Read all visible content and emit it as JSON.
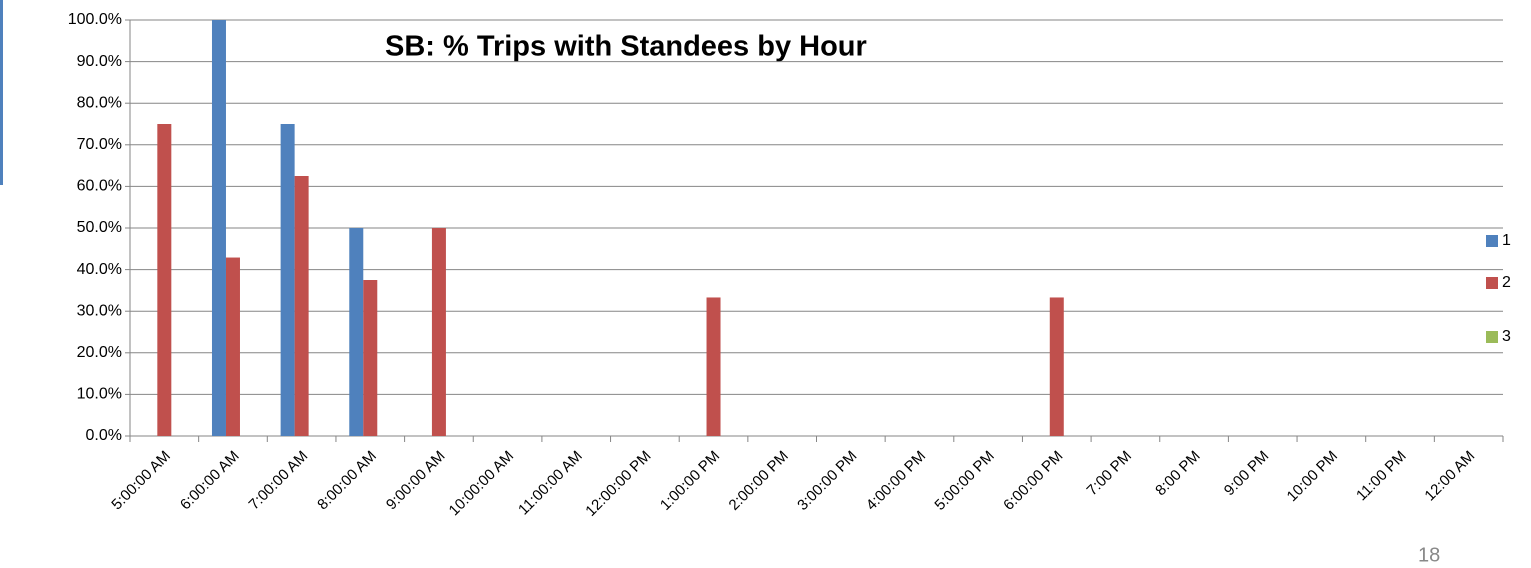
{
  "chart_data": {
    "type": "bar",
    "title": "SB: % Trips with Standees by Hour",
    "categories": [
      "5:00:00 AM",
      "6:00:00 AM",
      "7:00:00 AM",
      "8:00:00 AM",
      "9:00:00 AM",
      "10:00:00 AM",
      "11:00:00 AM",
      "12:00:00 PM",
      "1:00:00 PM",
      "2:00:00 PM",
      "3:00:00 PM",
      "4:00:00 PM",
      "5:00:00 PM",
      "6:00:00 PM",
      "7:00 PM",
      "8:00 PM",
      "9:00 PM",
      "10:00 PM",
      "11:00 PM",
      "12:00 AM"
    ],
    "series": [
      {
        "name": "1",
        "color": "#4f81bd",
        "values": [
          0,
          100,
          75,
          50,
          0,
          0,
          0,
          0,
          0,
          0,
          0,
          0,
          0,
          0,
          0,
          0,
          0,
          0,
          0,
          0
        ]
      },
      {
        "name": "2",
        "color": "#c0504d",
        "values": [
          75,
          42.9,
          62.5,
          37.5,
          50,
          0,
          0,
          0,
          33.3,
          0,
          0,
          0,
          0,
          33.3,
          0,
          0,
          0,
          0,
          0,
          0
        ]
      },
      {
        "name": "3",
        "color": "#9bbb59",
        "values": [
          0,
          0,
          0,
          0,
          0,
          0,
          0,
          0,
          0,
          0,
          0,
          0,
          0,
          0,
          0,
          0,
          0,
          0,
          0,
          0
        ]
      }
    ],
    "ylim": [
      0,
      100
    ],
    "yticks": [
      {
        "value": 0,
        "label": "0.0%"
      },
      {
        "value": 10,
        "label": "10.0%"
      },
      {
        "value": 20,
        "label": "20.0%"
      },
      {
        "value": 30,
        "label": "30.0%"
      },
      {
        "value": 40,
        "label": "40.0%"
      },
      {
        "value": 50,
        "label": "50.0%"
      },
      {
        "value": 60,
        "label": "60.0%"
      },
      {
        "value": 70,
        "label": "70.0%"
      },
      {
        "value": 80,
        "label": "80.0%"
      },
      {
        "value": 90,
        "label": "90.0%"
      },
      {
        "value": 100,
        "label": "100.0%"
      }
    ],
    "grid": true,
    "legend": "right"
  },
  "page_number": "18"
}
